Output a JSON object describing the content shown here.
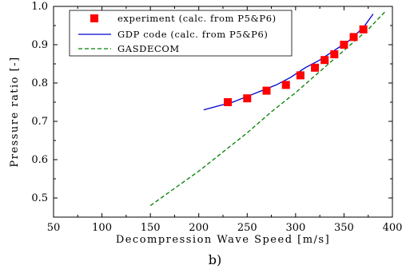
{
  "chart_data": {
    "type": "scatter",
    "panel_label": "b)",
    "xlabel": "Decompression Wave Speed [m/s]",
    "ylabel": "Pressure ratio [-]",
    "xlim": [
      50,
      400
    ],
    "ylim": [
      0.45,
      1.0
    ],
    "xticks": [
      50,
      100,
      150,
      200,
      250,
      300,
      350,
      400
    ],
    "yticks": [
      0.5,
      0.6,
      0.7,
      0.8,
      0.9,
      1.0
    ],
    "xtick_labels": [
      "50",
      "100",
      "150",
      "200",
      "250",
      "300",
      "350",
      "400"
    ],
    "ytick_labels": [
      "0.5",
      "0.6",
      "0.7",
      "0.8",
      "0.9",
      "1.0"
    ],
    "grid": false,
    "legend_position": "top-left",
    "series": [
      {
        "name": "experiment (calc. from P5&P6)",
        "kind": "markers",
        "marker": "square",
        "color": "#ff0000",
        "x": [
          230,
          250,
          270,
          290,
          305,
          320,
          330,
          340,
          350,
          360,
          370
        ],
        "y": [
          0.75,
          0.76,
          0.78,
          0.795,
          0.82,
          0.84,
          0.86,
          0.875,
          0.9,
          0.92,
          0.94
        ]
      },
      {
        "name": "GDP code (calc. from P5&P6)",
        "kind": "line",
        "style": "solid",
        "color": "#0000cc",
        "x": [
          205,
          220,
          235,
          250,
          265,
          280,
          295,
          310,
          325,
          340,
          355,
          370,
          380
        ],
        "y": [
          0.73,
          0.74,
          0.75,
          0.765,
          0.78,
          0.795,
          0.815,
          0.84,
          0.86,
          0.885,
          0.91,
          0.945,
          0.98
        ]
      },
      {
        "name": "GASDECOM",
        "kind": "line",
        "style": "dashed",
        "color": "#008000",
        "x": [
          150,
          175,
          200,
          225,
          250,
          275,
          300,
          325,
          350,
          375,
          392
        ],
        "y": [
          0.48,
          0.525,
          0.57,
          0.62,
          0.67,
          0.725,
          0.775,
          0.83,
          0.885,
          0.94,
          0.985
        ]
      }
    ]
  }
}
